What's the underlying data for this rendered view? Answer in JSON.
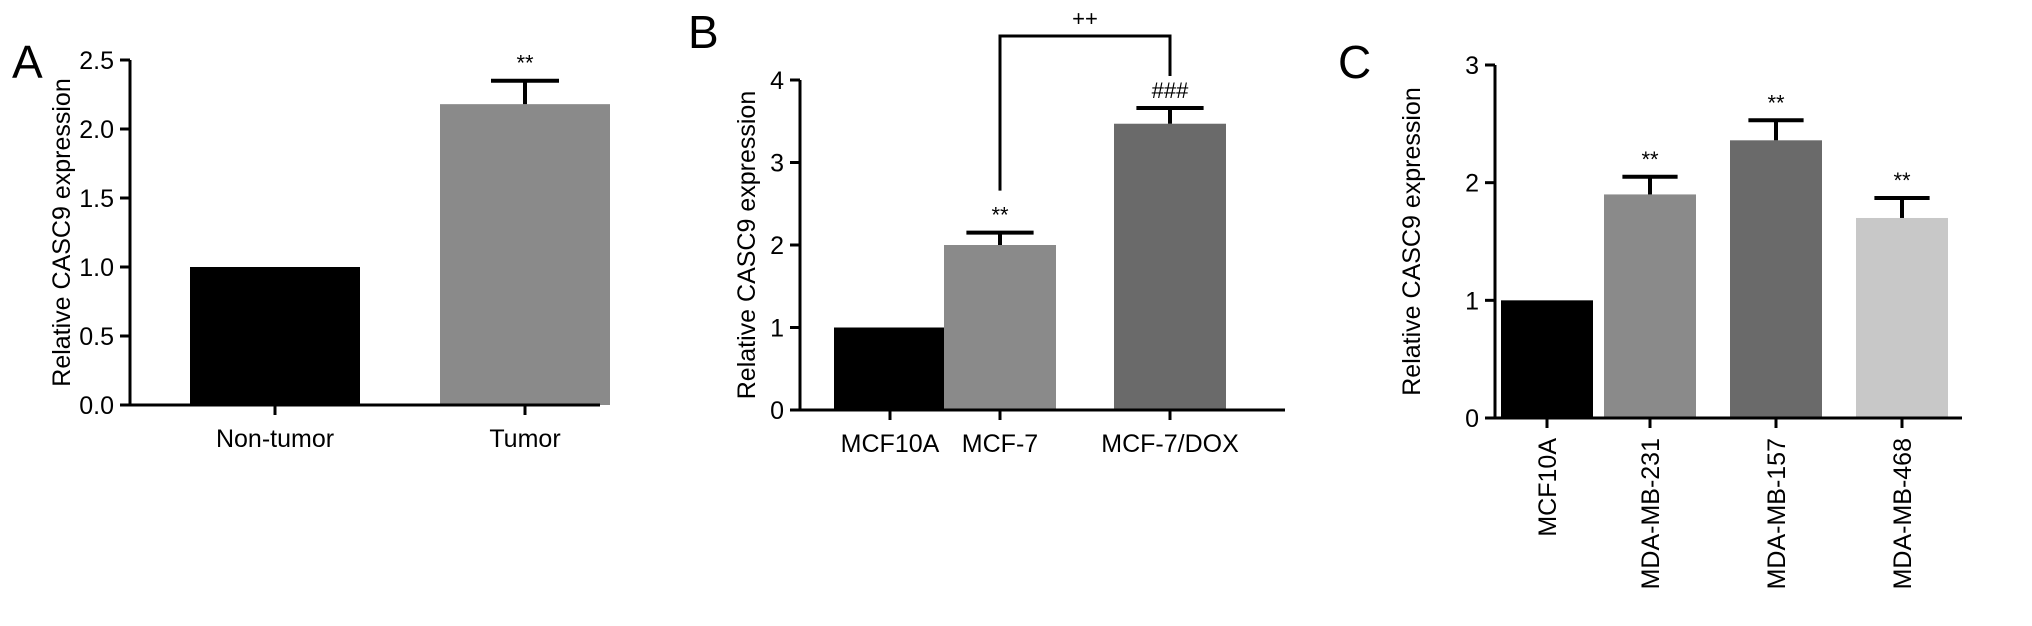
{
  "figure": {
    "panels": [
      "A",
      "B",
      "C"
    ]
  },
  "chart_data": [
    {
      "panel": "A",
      "type": "bar",
      "categories": [
        "Non-tumor",
        "Tumor"
      ],
      "values": [
        1.0,
        2.18
      ],
      "errors": [
        0.0,
        0.17
      ],
      "significance": [
        "",
        "**"
      ],
      "colors": [
        "#000000",
        "#8a8a8a"
      ],
      "ylabel": "Relative CASC9 expression",
      "xlabel": "",
      "ylim": [
        0,
        2.5
      ],
      "yticks": [
        "0.0",
        "0.5",
        "1.0",
        "1.5",
        "2.0",
        "2.5"
      ],
      "grid": false,
      "category_label_rotation": "horizontal"
    },
    {
      "panel": "B",
      "type": "bar",
      "categories": [
        "MCF10A",
        "MCF-7",
        "MCF-7/DOX"
      ],
      "values": [
        1.0,
        2.0,
        3.47
      ],
      "errors": [
        0.0,
        0.15,
        0.19
      ],
      "significance": [
        "",
        "**",
        "###"
      ],
      "colors": [
        "#000000",
        "#8a8a8a",
        "#6a6a6a"
      ],
      "bracket": {
        "from": "MCF-7",
        "to": "MCF-7/DOX",
        "label": "++"
      },
      "ylabel": "Relative CASC9 expression",
      "xlabel": "",
      "ylim": [
        0,
        4
      ],
      "yticks": [
        "0",
        "1",
        "2",
        "3",
        "4"
      ],
      "grid": false,
      "category_label_rotation": "horizontal"
    },
    {
      "panel": "C",
      "type": "bar",
      "categories": [
        "MCF10A",
        "MDA-MB-231",
        "MDA-MB-157",
        "MDA-MB-468"
      ],
      "values": [
        1.0,
        1.9,
        2.36,
        1.7
      ],
      "errors": [
        0.0,
        0.15,
        0.17,
        0.17
      ],
      "significance": [
        "",
        "**",
        "**",
        "**"
      ],
      "colors": [
        "#000000",
        "#8a8a8a",
        "#6a6a6a",
        "#c8c8c8"
      ],
      "ylabel": "Relative CASC9 expression",
      "xlabel": "",
      "ylim": [
        0,
        3
      ],
      "yticks": [
        "0",
        "1",
        "2",
        "3"
      ],
      "grid": false,
      "category_label_rotation": "vertical"
    }
  ]
}
